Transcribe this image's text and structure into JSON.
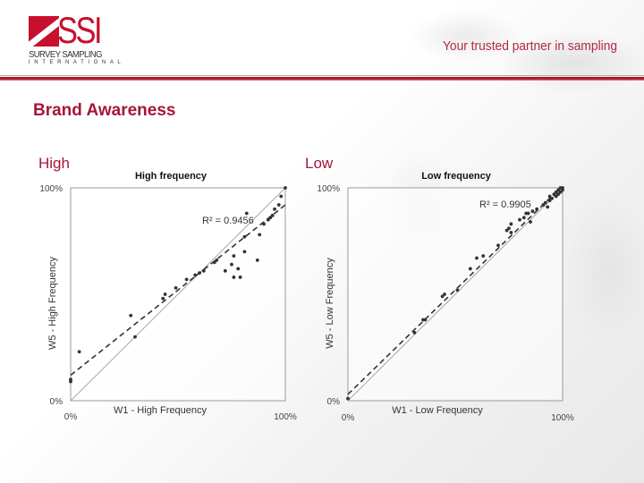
{
  "header": {
    "logo": {
      "mark": "SSI",
      "line1": "SURVEY SAMPLING",
      "line2": "INTERNATIONAL"
    },
    "tagline": "Your trusted partner in sampling"
  },
  "page": {
    "title": "Brand Awareness",
    "left_label": "High",
    "right_label": "Low"
  },
  "colors": {
    "brand_red": "#c8102e",
    "title_red": "#a5163a",
    "tagline_red": "#b02a44"
  },
  "chart_data": [
    {
      "type": "scatter",
      "title": "High frequency",
      "xlabel": "W1 - High Frequency",
      "ylabel": "W5 - High Frequency",
      "x_ticks": [
        "0%",
        "100%"
      ],
      "y_ticks": [
        "0%",
        "100%"
      ],
      "xlim": [
        0,
        100
      ],
      "ylim": [
        0,
        100
      ],
      "grid": false,
      "annotation": "R² = 0.9456",
      "r_squared": 0.9456,
      "reference_line": {
        "style": "solid",
        "from": [
          0,
          0
        ],
        "to": [
          100,
          100
        ]
      },
      "trendline": {
        "style": "dashed",
        "from": [
          0,
          12
        ],
        "to": [
          100,
          92
        ]
      },
      "points": [
        [
          0,
          9
        ],
        [
          0,
          10
        ],
        [
          4,
          23
        ],
        [
          28,
          40
        ],
        [
          30,
          30
        ],
        [
          43,
          48
        ],
        [
          44,
          50
        ],
        [
          49,
          53
        ],
        [
          54,
          57
        ],
        [
          58,
          59
        ],
        [
          60,
          60
        ],
        [
          62,
          61
        ],
        [
          67,
          65
        ],
        [
          68,
          66
        ],
        [
          72,
          61
        ],
        [
          75,
          64
        ],
        [
          76,
          68
        ],
        [
          78,
          62
        ],
        [
          76,
          58
        ],
        [
          79,
          58
        ],
        [
          81,
          70
        ],
        [
          81,
          77
        ],
        [
          82,
          88
        ],
        [
          87,
          66
        ],
        [
          88,
          78
        ],
        [
          90,
          83
        ],
        [
          92,
          85
        ],
        [
          93,
          86
        ],
        [
          94,
          87
        ],
        [
          95,
          90
        ],
        [
          97,
          92
        ],
        [
          98,
          96
        ],
        [
          100,
          100
        ]
      ]
    },
    {
      "type": "scatter",
      "title": "Low frequency",
      "xlabel": "W1 - Low Frequency",
      "ylabel": "W5 - Low Frequency",
      "x_ticks": [
        "0%",
        "100%"
      ],
      "y_ticks": [
        "0%",
        "100%"
      ],
      "xlim": [
        0,
        100
      ],
      "ylim": [
        0,
        100
      ],
      "grid": false,
      "annotation": "R² = 0.9905",
      "r_squared": 0.9905,
      "reference_line": {
        "style": "solid",
        "from": [
          0,
          0
        ],
        "to": [
          100,
          100
        ]
      },
      "trendline": {
        "style": "dashed",
        "from": [
          0,
          3
        ],
        "to": [
          100,
          101
        ]
      },
      "points": [
        [
          0,
          1
        ],
        [
          31,
          32
        ],
        [
          35,
          38
        ],
        [
          36,
          38
        ],
        [
          44,
          49
        ],
        [
          45,
          50
        ],
        [
          51,
          52
        ],
        [
          57,
          62
        ],
        [
          60,
          67
        ],
        [
          63,
          68
        ],
        [
          70,
          73
        ],
        [
          74,
          80
        ],
        [
          75,
          81
        ],
        [
          76,
          79
        ],
        [
          76,
          83
        ],
        [
          80,
          85
        ],
        [
          82,
          86
        ],
        [
          83,
          88
        ],
        [
          84,
          88
        ],
        [
          85,
          84
        ],
        [
          86,
          89
        ],
        [
          88,
          90
        ],
        [
          91,
          92
        ],
        [
          92,
          93
        ],
        [
          93,
          91
        ],
        [
          94,
          94
        ],
        [
          94,
          96
        ],
        [
          95,
          95
        ],
        [
          96,
          97
        ],
        [
          97,
          96
        ],
        [
          97,
          98
        ],
        [
          98,
          97
        ],
        [
          98,
          99
        ],
        [
          99,
          98
        ],
        [
          99,
          100
        ],
        [
          100,
          99
        ],
        [
          100,
          100
        ]
      ]
    }
  ]
}
